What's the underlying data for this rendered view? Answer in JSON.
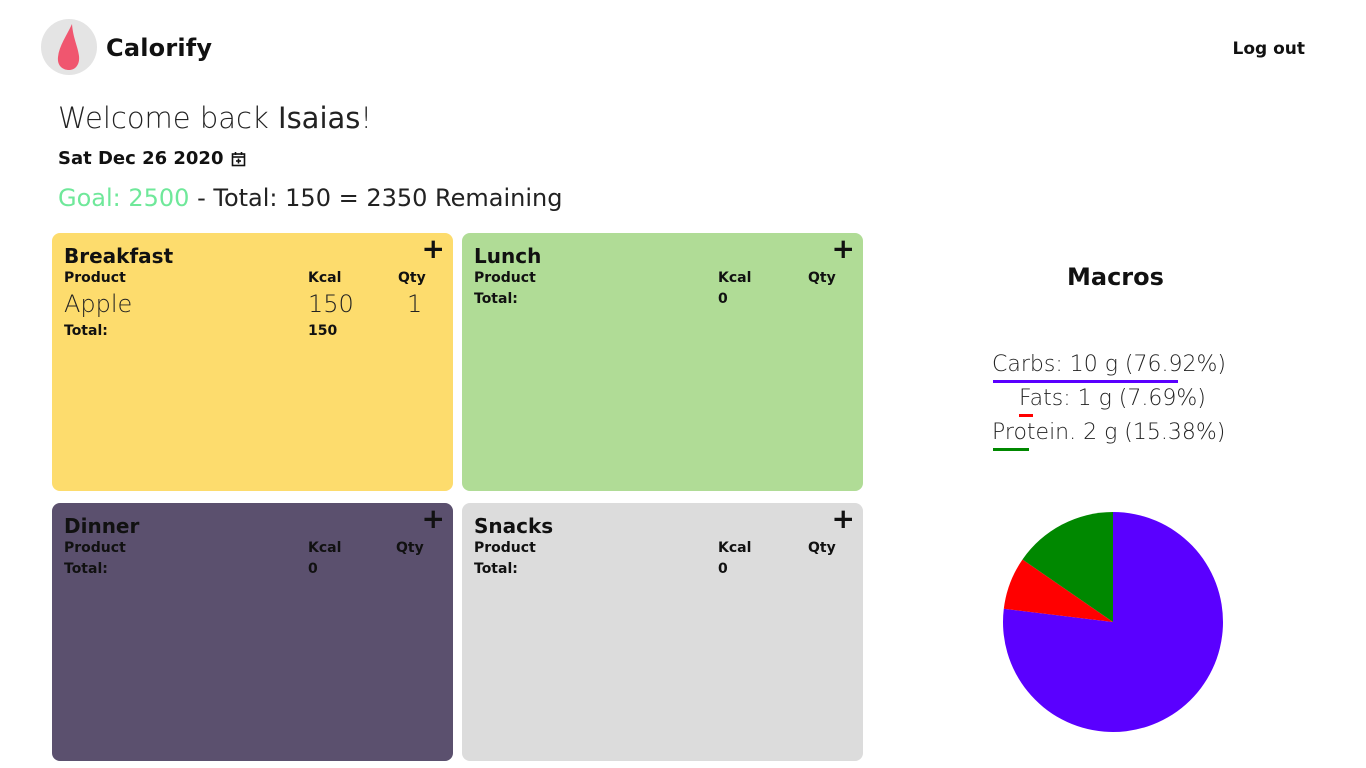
{
  "app": {
    "name": "Calorify",
    "logout_label": "Log out",
    "logo_icon": "drop-icon",
    "logo_color": "#f0566f"
  },
  "welcome": {
    "prefix": "Welcome back",
    "name": "Isaias",
    "suffix": "!"
  },
  "date": {
    "label": "Sat Dec 26 2020",
    "icon": "calendar-icon"
  },
  "summary": {
    "goal_label": "Goal: 2500",
    "rest": "- Total: 150 = 2350 Remaining",
    "goal_color": "#6fe89a"
  },
  "meals": [
    {
      "title": "Breakfast",
      "color": "#fddc6d",
      "headers": {
        "product": "Product",
        "kcal": "Kcal",
        "qty": "Qty"
      },
      "items": [
        {
          "product": "Apple",
          "kcal": "150",
          "qty": "1"
        }
      ],
      "total_label": "Total:",
      "total_kcal": "150",
      "add_icon": "plus-icon"
    },
    {
      "title": "Lunch",
      "color": "#b0dc96",
      "headers": {
        "product": "Product",
        "kcal": "Kcal",
        "qty": "Qty"
      },
      "items": [],
      "total_label": "Total:",
      "total_kcal": "0",
      "add_icon": "plus-icon"
    },
    {
      "title": "Dinner",
      "color": "#5b506e",
      "headers": {
        "product": "Product",
        "kcal": "Kcal",
        "qty": "Qty"
      },
      "items": [],
      "total_label": "Total:",
      "total_kcal": "0",
      "add_icon": "plus-icon"
    },
    {
      "title": "Snacks",
      "color": "#dcdcdc",
      "headers": {
        "product": "Product",
        "kcal": "Kcal",
        "qty": "Qty"
      },
      "items": [],
      "total_label": "Total:",
      "total_kcal": "0",
      "add_icon": "plus-icon"
    }
  ],
  "macros": {
    "title": "Macros",
    "items": [
      {
        "label": "Carbs: 10 g (76.92%)",
        "color": "#5a00ff"
      },
      {
        "label": "Fats: 1 g (7.69%)",
        "color": "#ff0000"
      },
      {
        "label": "Protein. 2 g (15.38%)",
        "color": "#008800"
      }
    ]
  },
  "chart_data": {
    "type": "pie",
    "title": "",
    "categories": [
      "Carbs",
      "Fats",
      "Protein"
    ],
    "values": [
      76.92,
      7.69,
      15.38
    ],
    "colors": [
      "#5a00ff",
      "#ff0000",
      "#008800"
    ]
  }
}
